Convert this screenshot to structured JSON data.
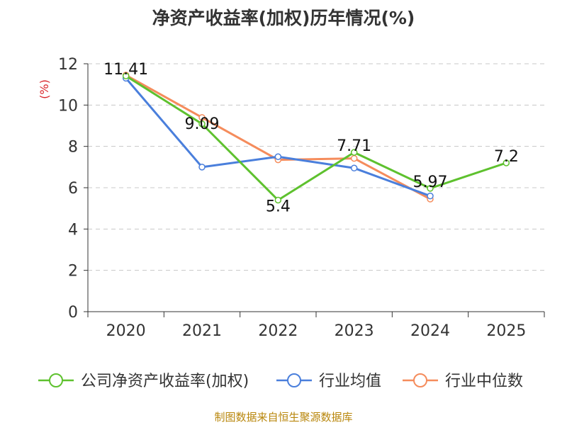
{
  "chart_data": {
    "type": "line",
    "title": "净资产收益率(加权)历年情况(%)",
    "ylabel": "(%)",
    "xlabel": "",
    "categories": [
      "2020",
      "2021",
      "2022",
      "2023",
      "2024",
      "2025"
    ],
    "ylim": [
      0,
      12
    ],
    "yticks": [
      0,
      2,
      4,
      6,
      8,
      10,
      12
    ],
    "grid": true,
    "legend_position": "bottom",
    "series": [
      {
        "name": "公司净资产收益率(加权)",
        "color": "#5ec12e",
        "values": [
          11.41,
          9.09,
          5.4,
          7.71,
          5.97,
          7.2
        ],
        "labels": [
          "11.41",
          "9.09",
          "5.4",
          "7.71",
          "5.97",
          "7.2"
        ]
      },
      {
        "name": "行业均值",
        "color": "#4a7fdc",
        "values": [
          11.3,
          7.0,
          7.5,
          6.95,
          5.6,
          null
        ]
      },
      {
        "name": "行业中位数",
        "color": "#f58c5c",
        "values": [
          11.45,
          9.4,
          7.35,
          7.42,
          5.45,
          null
        ]
      }
    ],
    "source": "制图数据来自恒生聚源数据库"
  }
}
